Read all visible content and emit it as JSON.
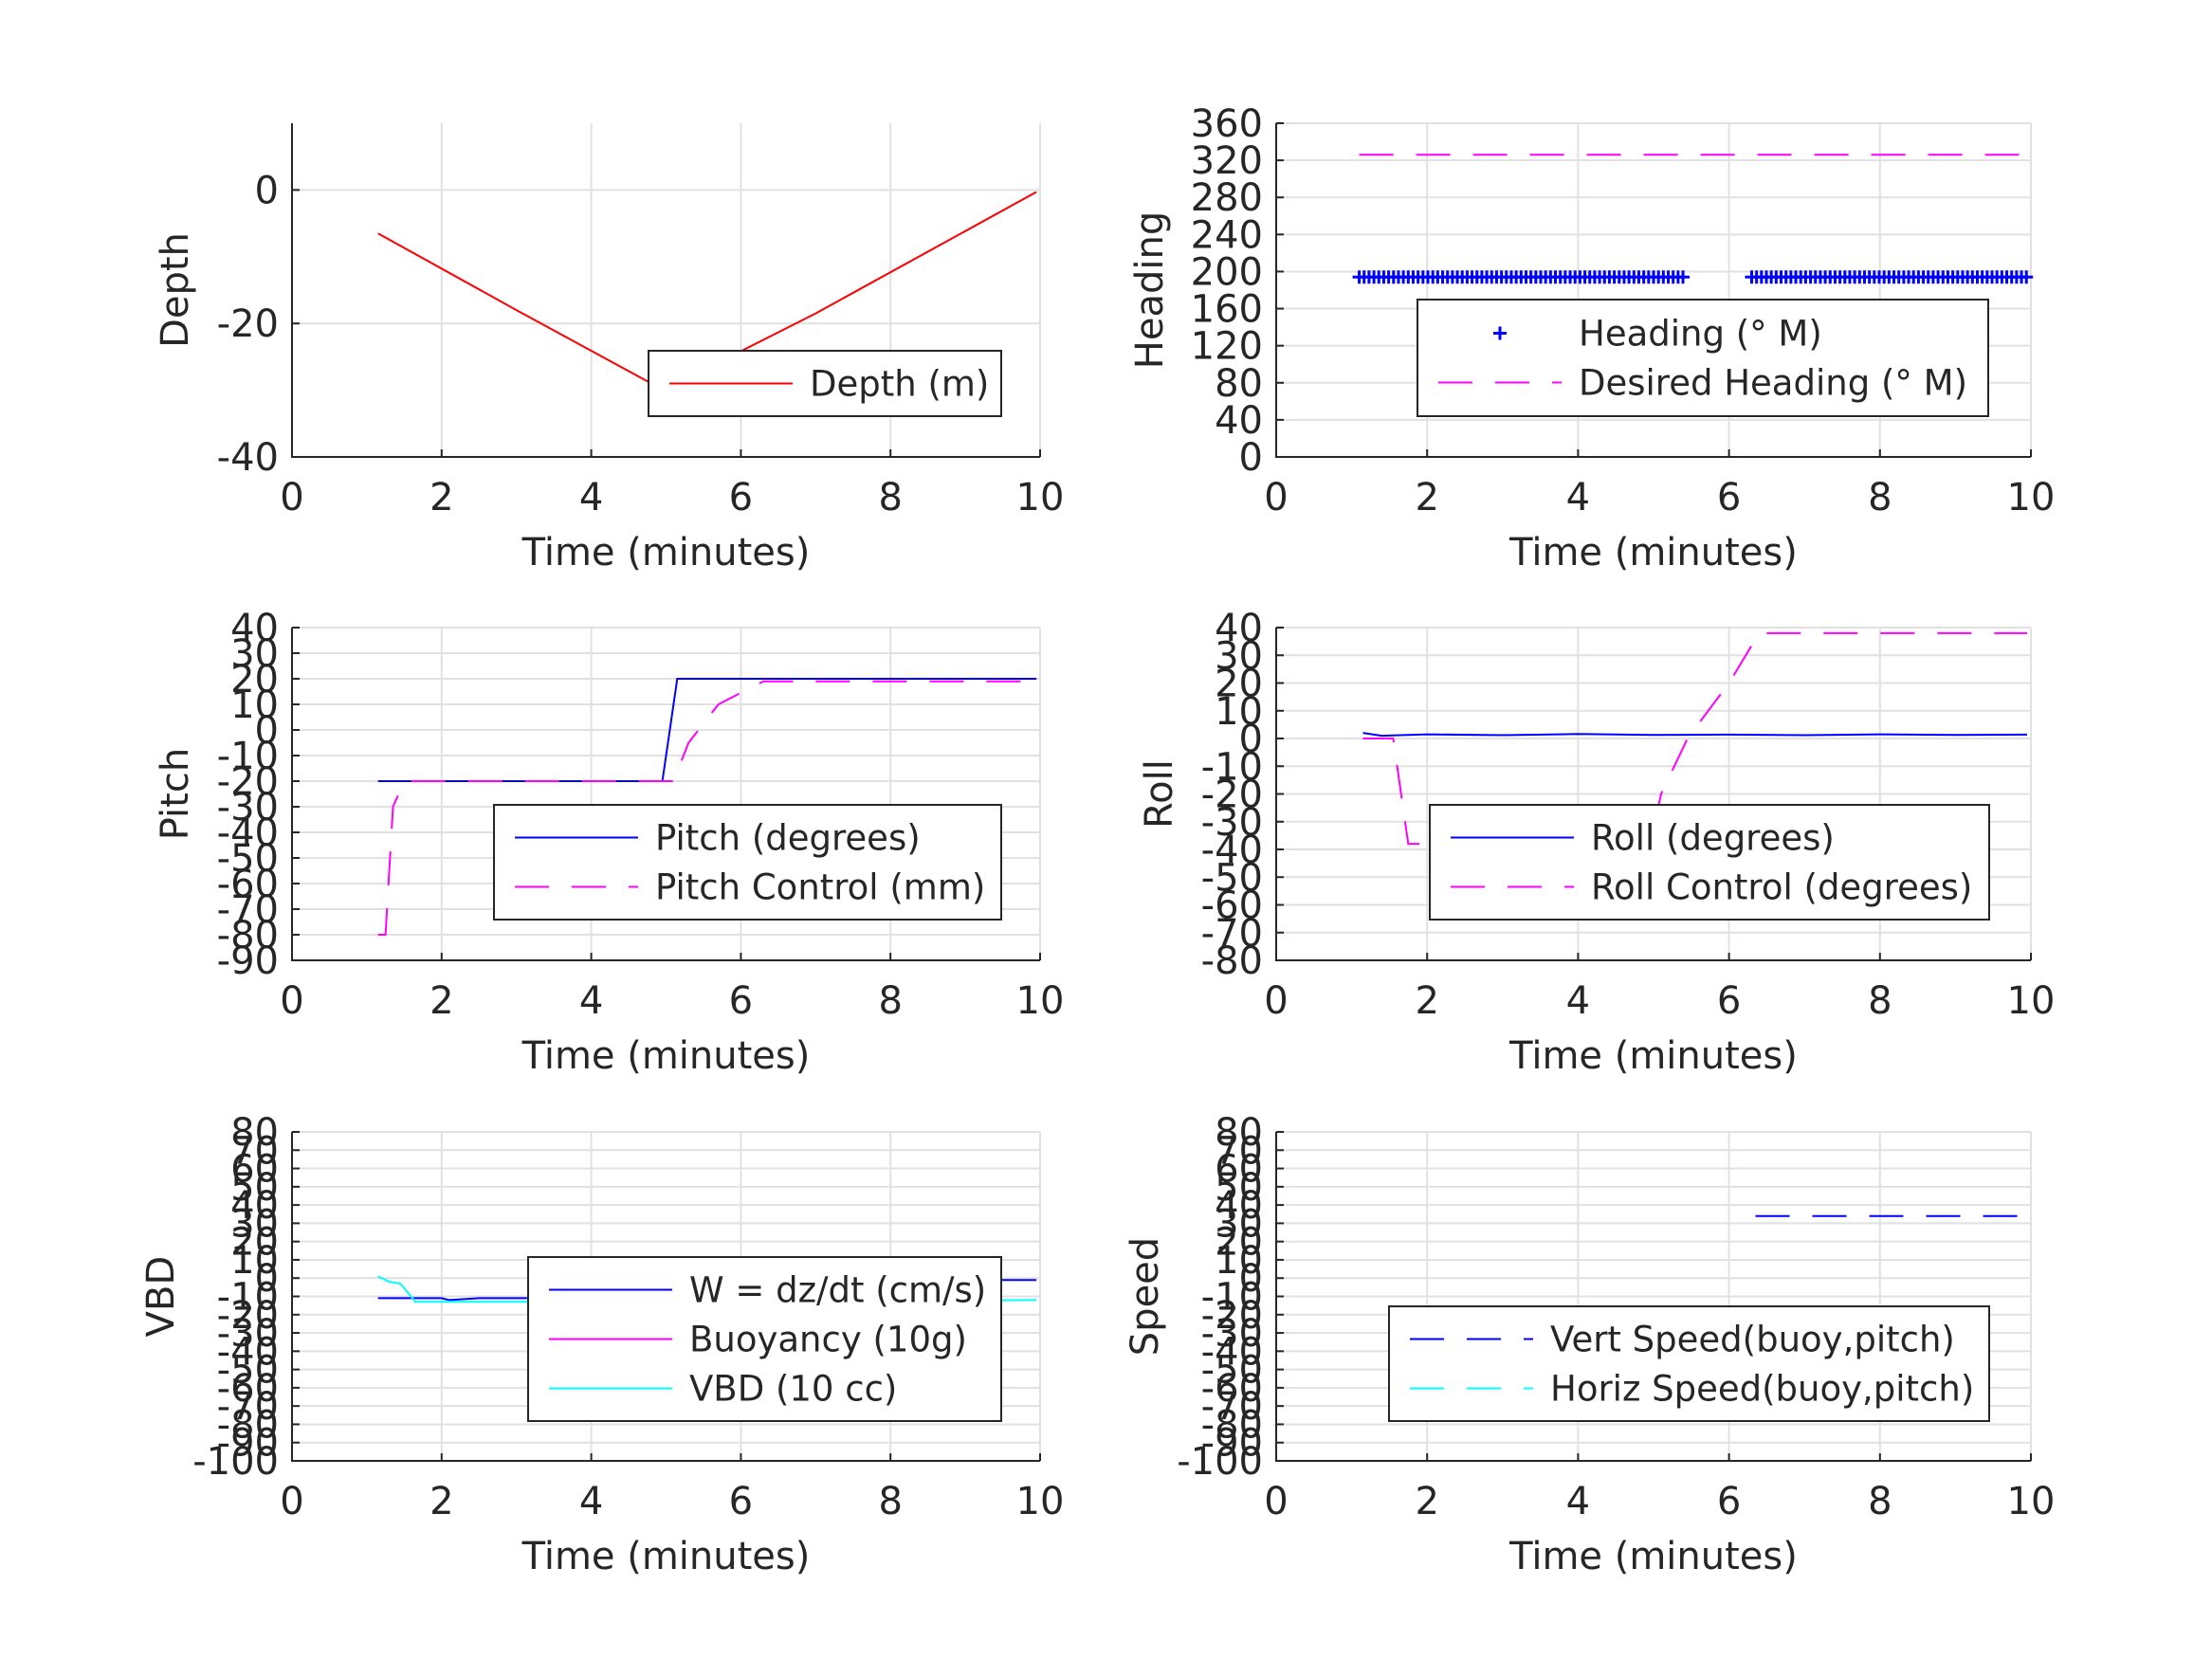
{
  "chart_data": [
    {
      "id": "depth",
      "type": "line",
      "xlabel": "Time (minutes)",
      "ylabel": "Depth",
      "xlim": [
        0,
        10
      ],
      "ylim": [
        -40,
        10
      ],
      "xticks": [
        0,
        2,
        4,
        6,
        8,
        10
      ],
      "yticks": [
        -40,
        -20,
        0
      ],
      "grid": true,
      "legend_position": "bottom-right",
      "series": [
        {
          "name": "Depth (m)",
          "color": "#ff0000",
          "style": "solid",
          "x": [
            1.15,
            3.0,
            4.97,
            7.0,
            9.95
          ],
          "y": [
            -6.5,
            -18.0,
            -30.0,
            -18.5,
            -0.3
          ]
        }
      ]
    },
    {
      "id": "heading",
      "type": "line",
      "xlabel": "Time (minutes)",
      "ylabel": "Heading",
      "xlim": [
        0,
        10
      ],
      "ylim": [
        0,
        360
      ],
      "xticks": [
        0,
        2,
        4,
        6,
        8,
        10
      ],
      "yticks": [
        0,
        40,
        80,
        120,
        160,
        200,
        240,
        280,
        320,
        360
      ],
      "grid": true,
      "legend_position": "middle-right",
      "series": [
        {
          "name": "Heading (° M)",
          "color": "#0000ff",
          "style": "plus",
          "segments": [
            {
              "x_start": 1.1,
              "x_end": 5.4,
              "y": 194
            },
            {
              "x_start": 6.3,
              "x_end": 10.0,
              "y": 194
            }
          ]
        },
        {
          "name": "Desired Heading (° M)",
          "color": "#ff00ff",
          "style": "dashed",
          "x": [
            1.1,
            10.0
          ],
          "y": [
            326,
            326
          ]
        }
      ]
    },
    {
      "id": "pitch",
      "type": "line",
      "xlabel": "Time (minutes)",
      "ylabel": "Pitch",
      "xlim": [
        0,
        10
      ],
      "ylim": [
        -90,
        40
      ],
      "xticks": [
        0,
        2,
        4,
        6,
        8,
        10
      ],
      "yticks": [
        -90,
        -80,
        -70,
        -60,
        -50,
        -40,
        -30,
        -20,
        -10,
        0,
        10,
        20,
        30,
        40
      ],
      "grid": true,
      "legend_position": "bottom-right",
      "series": [
        {
          "name": "Pitch (degrees)",
          "color": "#0000ff",
          "style": "solid",
          "x": [
            1.15,
            1.45,
            4.95,
            5.15,
            9.95
          ],
          "y": [
            -20,
            -20,
            -20,
            20,
            20
          ]
        },
        {
          "name": "Pitch Control (mm)",
          "color": "#ff00ff",
          "style": "dashed",
          "x": [
            1.15,
            1.25,
            1.35,
            1.5,
            5.1,
            5.3,
            5.7,
            6.3,
            9.95
          ],
          "y": [
            -80,
            -80,
            -30,
            -20,
            -20,
            -5,
            10,
            19,
            19
          ]
        }
      ]
    },
    {
      "id": "roll",
      "type": "line",
      "xlabel": "Time (minutes)",
      "ylabel": "Roll",
      "xlim": [
        0,
        10
      ],
      "ylim": [
        -80,
        40
      ],
      "xticks": [
        0,
        2,
        4,
        6,
        8,
        10
      ],
      "yticks": [
        -80,
        -70,
        -60,
        -50,
        -40,
        -30,
        -20,
        -10,
        0,
        10,
        20,
        30,
        40
      ],
      "grid": true,
      "legend_position": "bottom-right",
      "series": [
        {
          "name": "Roll (degrees)",
          "color": "#0000ff",
          "style": "solid",
          "x": [
            1.15,
            1.4,
            2.0,
            3.0,
            4.0,
            5.0,
            6.0,
            7.0,
            8.0,
            9.0,
            9.95
          ],
          "y": [
            2,
            1,
            1.5,
            1.2,
            1.6,
            1.3,
            1.4,
            1.2,
            1.5,
            1.3,
            1.4
          ]
        },
        {
          "name": "Roll Control (degrees)",
          "color": "#ff00ff",
          "style": "dashed",
          "x": [
            1.15,
            1.55,
            1.75,
            4.95,
            5.1,
            5.45,
            6.0,
            6.4,
            9.95
          ],
          "y": [
            0,
            0,
            -38,
            -38,
            -20,
            0,
            20,
            38,
            38
          ]
        }
      ]
    },
    {
      "id": "vbd",
      "type": "line",
      "xlabel": "Time (minutes)",
      "ylabel": "VBD",
      "xlim": [
        0,
        10
      ],
      "ylim": [
        -100,
        80
      ],
      "xticks": [
        0,
        2,
        4,
        6,
        8,
        10
      ],
      "yticks": [
        -100,
        -90,
        -80,
        -70,
        -60,
        -50,
        -40,
        -30,
        -20,
        -10,
        0,
        10,
        20,
        30,
        40,
        50,
        60,
        70,
        80
      ],
      "grid": true,
      "legend_position": "bottom-right",
      "series": [
        {
          "name": "W = dz/dt (cm/s)",
          "color": "#0000ff",
          "style": "solid",
          "x": [
            1.15,
            2.0,
            2.1,
            2.5,
            3.0,
            4.0,
            4.95,
            5.1,
            6.0,
            7.0,
            8.0,
            9.0,
            9.95
          ],
          "y": [
            -11,
            -11,
            -12,
            -11,
            -11,
            -11,
            -11,
            -2,
            -1,
            -1,
            -1,
            -1,
            -1
          ]
        },
        {
          "name": "Buoyancy (10g)",
          "color": "#ff00ff",
          "style": "solid",
          "x": [],
          "y": []
        },
        {
          "name": "VBD (10 cc)",
          "color": "#00ffff",
          "style": "solid",
          "x": [
            1.15,
            1.3,
            1.45,
            1.65,
            3.0,
            5.0,
            7.0,
            9.95
          ],
          "y": [
            1,
            -2,
            -3,
            -13,
            -13,
            -13,
            -12.5,
            -12
          ]
        }
      ]
    },
    {
      "id": "speed",
      "type": "line",
      "xlabel": "Time (minutes)",
      "ylabel": "Speed",
      "xlim": [
        0,
        10
      ],
      "ylim": [
        -100,
        80
      ],
      "xticks": [
        0,
        2,
        4,
        6,
        8,
        10
      ],
      "yticks": [
        -100,
        -90,
        -80,
        -70,
        -60,
        -50,
        -40,
        -30,
        -20,
        -10,
        0,
        10,
        20,
        30,
        40,
        50,
        60,
        70,
        80
      ],
      "grid": true,
      "legend_position": "bottom-right",
      "series": [
        {
          "name": "Vert Speed(buoy,pitch)",
          "color": "#0000ff",
          "style": "dashed",
          "x": [
            6.35,
            9.95
          ],
          "y": [
            34,
            34
          ]
        },
        {
          "name": "Horiz Speed(buoy,pitch)",
          "color": "#00ffff",
          "style": "dashed",
          "x": [],
          "y": []
        }
      ]
    }
  ]
}
